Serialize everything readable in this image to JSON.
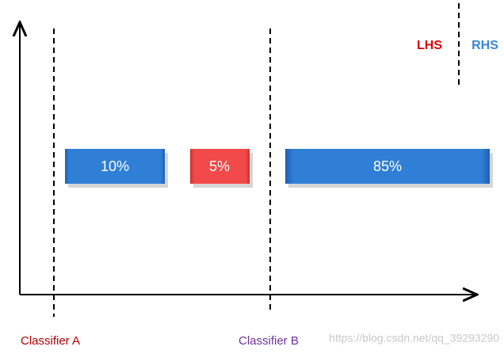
{
  "legend": {
    "lhs": "LHS",
    "rhs": "RHS"
  },
  "segments": [
    {
      "label": "10%"
    },
    {
      "label": "5%"
    },
    {
      "label": "85%"
    }
  ],
  "classifiers": [
    "Classifier A",
    "Classifier B"
  ],
  "watermark": "https://blog.csdn.net/qq_39293290"
}
